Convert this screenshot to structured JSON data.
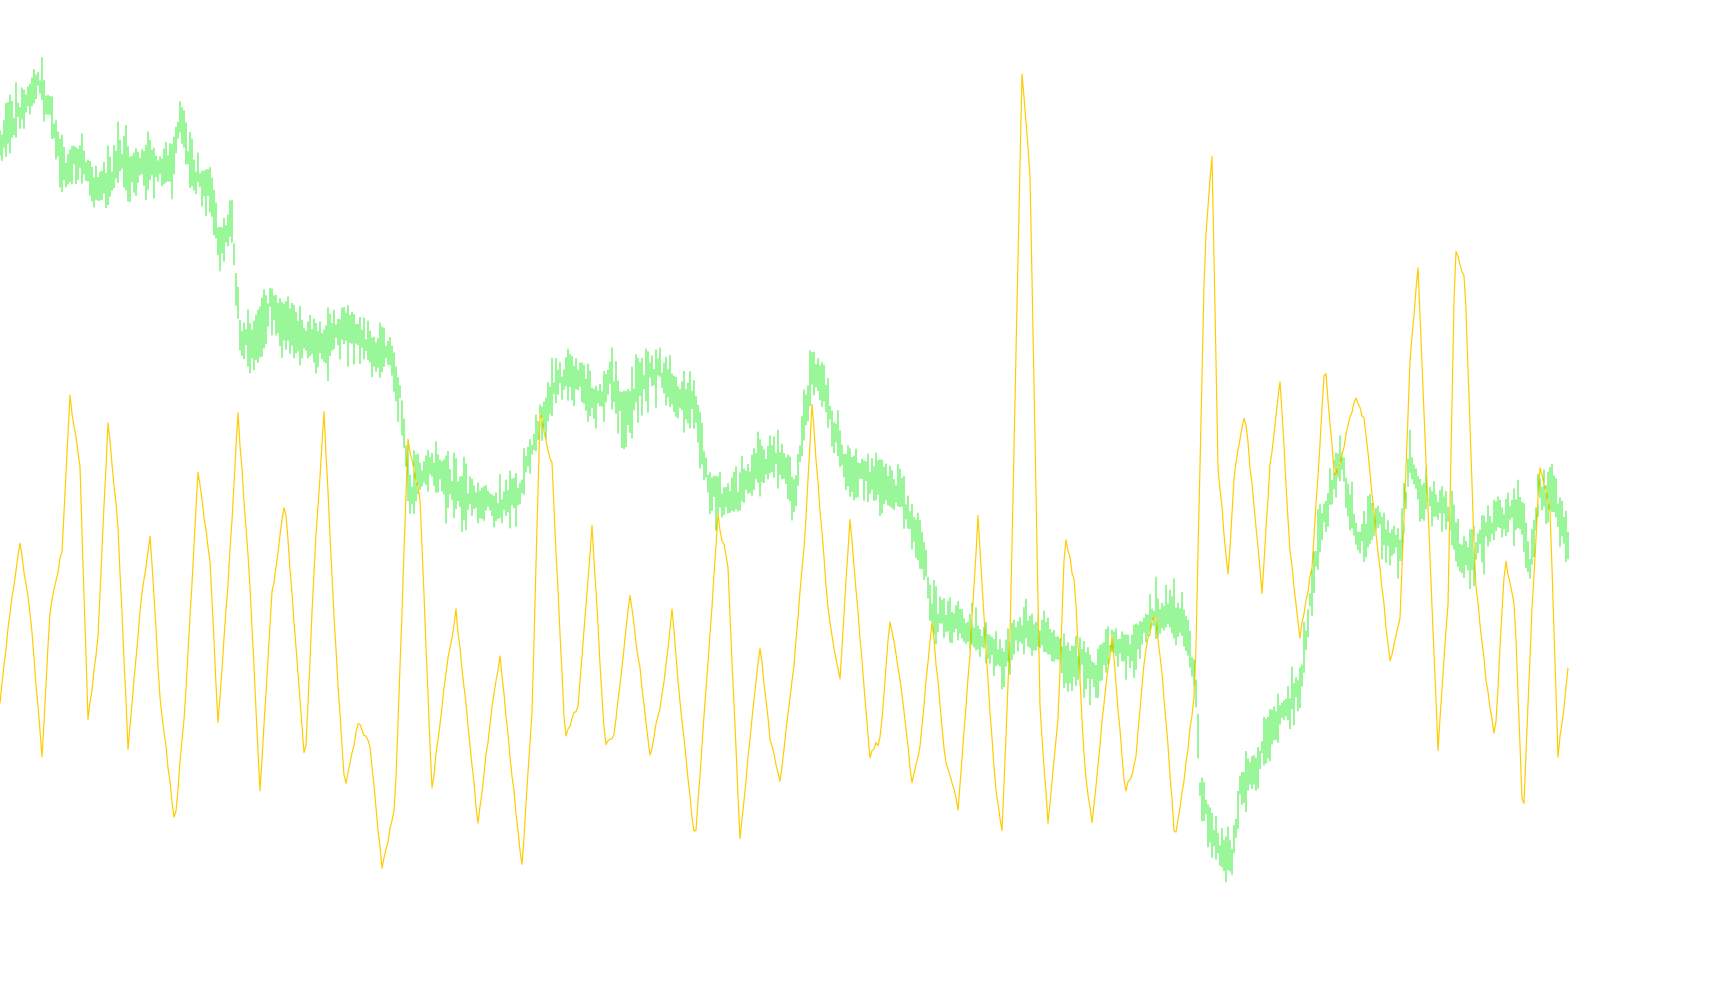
{
  "chart_data": {
    "type": "line",
    "title": "",
    "xlabel": "",
    "ylabel": "",
    "grid": false,
    "legend": "none",
    "xlim": [
      0,
      1568
    ],
    "ylim": [
      0,
      100
    ],
    "series": [
      {
        "id": "price",
        "style": "bars",
        "color": "#33ee33",
        "points": [
          [
            0,
            88
          ],
          [
            20,
            91
          ],
          [
            42,
            95
          ],
          [
            55,
            89
          ],
          [
            65,
            84
          ],
          [
            80,
            86
          ],
          [
            100,
            82
          ],
          [
            120,
            86
          ],
          [
            135,
            84
          ],
          [
            150,
            86
          ],
          [
            170,
            84
          ],
          [
            180,
            90
          ],
          [
            195,
            84
          ],
          [
            210,
            82
          ],
          [
            220,
            76
          ],
          [
            232,
            78
          ],
          [
            240,
            65
          ],
          [
            255,
            64
          ],
          [
            270,
            69
          ],
          [
            285,
            66
          ],
          [
            300,
            65
          ],
          [
            320,
            64
          ],
          [
            345,
            66
          ],
          [
            370,
            64
          ],
          [
            390,
            63
          ],
          [
            400,
            58
          ],
          [
            410,
            47
          ],
          [
            430,
            50
          ],
          [
            445,
            48
          ],
          [
            460,
            47
          ],
          [
            480,
            46
          ],
          [
            500,
            45
          ],
          [
            520,
            47
          ],
          [
            535,
            53
          ],
          [
            550,
            58
          ],
          [
            565,
            61
          ],
          [
            580,
            60
          ],
          [
            595,
            57
          ],
          [
            610,
            60
          ],
          [
            625,
            55
          ],
          [
            640,
            60
          ],
          [
            660,
            61
          ],
          [
            675,
            58
          ],
          [
            695,
            57
          ],
          [
            708,
            48
          ],
          [
            720,
            46
          ],
          [
            740,
            47
          ],
          [
            760,
            50
          ],
          [
            780,
            51
          ],
          [
            795,
            46
          ],
          [
            805,
            57
          ],
          [
            812,
            61
          ],
          [
            820,
            60
          ],
          [
            832,
            55
          ],
          [
            845,
            50
          ],
          [
            860,
            49
          ],
          [
            880,
            48
          ],
          [
            900,
            47
          ],
          [
            915,
            42
          ],
          [
            925,
            39
          ],
          [
            932,
            33
          ],
          [
            950,
            32
          ],
          [
            970,
            31
          ],
          [
            990,
            29
          ],
          [
            1005,
            27
          ],
          [
            1015,
            30
          ],
          [
            1025,
            31
          ],
          [
            1040,
            30
          ],
          [
            1055,
            29
          ],
          [
            1065,
            26
          ],
          [
            1080,
            27
          ],
          [
            1095,
            25
          ],
          [
            1110,
            29
          ],
          [
            1130,
            28
          ],
          [
            1150,
            32
          ],
          [
            1170,
            33
          ],
          [
            1185,
            31
          ],
          [
            1195,
            26
          ],
          [
            1200,
            12
          ],
          [
            1210,
            8
          ],
          [
            1220,
            5
          ],
          [
            1232,
            4
          ],
          [
            1240,
            12
          ],
          [
            1255,
            14
          ],
          [
            1270,
            19
          ],
          [
            1285,
            21
          ],
          [
            1300,
            24
          ],
          [
            1310,
            34
          ],
          [
            1320,
            42
          ],
          [
            1330,
            47
          ],
          [
            1340,
            51
          ],
          [
            1350,
            45
          ],
          [
            1360,
            41
          ],
          [
            1375,
            44
          ],
          [
            1390,
            41
          ],
          [
            1400,
            40
          ],
          [
            1410,
            51
          ],
          [
            1420,
            46
          ],
          [
            1435,
            46
          ],
          [
            1450,
            45
          ],
          [
            1460,
            39
          ],
          [
            1475,
            40
          ],
          [
            1490,
            43
          ],
          [
            1505,
            44
          ],
          [
            1520,
            45
          ],
          [
            1530,
            38
          ],
          [
            1540,
            47
          ],
          [
            1555,
            46
          ],
          [
            1568,
            41
          ]
        ]
      },
      {
        "id": "oscillator",
        "style": "line",
        "color": "#ffcc00",
        "points": [
          [
            0,
            22
          ],
          [
            8,
            31
          ],
          [
            20,
            41
          ],
          [
            30,
            33
          ],
          [
            42,
            16
          ],
          [
            50,
            33
          ],
          [
            62,
            40
          ],
          [
            70,
            58
          ],
          [
            80,
            50
          ],
          [
            88,
            20
          ],
          [
            98,
            30
          ],
          [
            108,
            55
          ],
          [
            118,
            43
          ],
          [
            128,
            17
          ],
          [
            140,
            33
          ],
          [
            150,
            42
          ],
          [
            160,
            23
          ],
          [
            175,
            8
          ],
          [
            185,
            22
          ],
          [
            198,
            49
          ],
          [
            210,
            39
          ],
          [
            218,
            20
          ],
          [
            228,
            36
          ],
          [
            238,
            56
          ],
          [
            250,
            36
          ],
          [
            260,
            12
          ],
          [
            272,
            35
          ],
          [
            285,
            46
          ],
          [
            295,
            30
          ],
          [
            305,
            15
          ],
          [
            315,
            40
          ],
          [
            324,
            56
          ],
          [
            335,
            30
          ],
          [
            345,
            12
          ],
          [
            358,
            20
          ],
          [
            370,
            17
          ],
          [
            382,
            3
          ],
          [
            395,
            10
          ],
          [
            408,
            53
          ],
          [
            420,
            46
          ],
          [
            432,
            12
          ],
          [
            445,
            25
          ],
          [
            456,
            33
          ],
          [
            465,
            23
          ],
          [
            478,
            8
          ],
          [
            490,
            20
          ],
          [
            500,
            28
          ],
          [
            510,
            16
          ],
          [
            522,
            3
          ],
          [
            532,
            21
          ],
          [
            540,
            56
          ],
          [
            552,
            50
          ],
          [
            565,
            18
          ],
          [
            578,
            22
          ],
          [
            592,
            43
          ],
          [
            605,
            17
          ],
          [
            615,
            19
          ],
          [
            630,
            35
          ],
          [
            640,
            26
          ],
          [
            650,
            16
          ],
          [
            662,
            23
          ],
          [
            672,
            33
          ],
          [
            682,
            20
          ],
          [
            695,
            6
          ],
          [
            705,
            22
          ],
          [
            718,
            44
          ],
          [
            728,
            38
          ],
          [
            740,
            6
          ],
          [
            750,
            18
          ],
          [
            760,
            29
          ],
          [
            770,
            18
          ],
          [
            780,
            13
          ],
          [
            795,
            28
          ],
          [
            805,
            42
          ],
          [
            812,
            57
          ],
          [
            828,
            33
          ],
          [
            840,
            25
          ],
          [
            850,
            44
          ],
          [
            860,
            30
          ],
          [
            870,
            16
          ],
          [
            880,
            18
          ],
          [
            890,
            32
          ],
          [
            900,
            25
          ],
          [
            912,
            13
          ],
          [
            920,
            17
          ],
          [
            932,
            32
          ],
          [
            945,
            16
          ],
          [
            958,
            10
          ],
          [
            970,
            28
          ],
          [
            978,
            44
          ],
          [
            985,
            30
          ],
          [
            995,
            13
          ],
          [
            1002,
            7
          ],
          [
            1010,
            30
          ],
          [
            1022,
            96
          ],
          [
            1030,
            84
          ],
          [
            1040,
            22
          ],
          [
            1048,
            8
          ],
          [
            1058,
            20
          ],
          [
            1065,
            42
          ],
          [
            1075,
            36
          ],
          [
            1085,
            14
          ],
          [
            1092,
            8
          ],
          [
            1102,
            20
          ],
          [
            1112,
            30
          ],
          [
            1125,
            12
          ],
          [
            1135,
            15
          ],
          [
            1145,
            28
          ],
          [
            1155,
            33
          ],
          [
            1165,
            22
          ],
          [
            1175,
            6
          ],
          [
            1185,
            14
          ],
          [
            1195,
            24
          ],
          [
            1205,
            76
          ],
          [
            1212,
            86
          ],
          [
            1218,
            50
          ],
          [
            1228,
            37
          ],
          [
            1235,
            50
          ],
          [
            1245,
            56
          ],
          [
            1255,
            44
          ],
          [
            1262,
            35
          ],
          [
            1270,
            50
          ],
          [
            1280,
            60
          ],
          [
            1290,
            40
          ],
          [
            1300,
            30
          ],
          [
            1312,
            38
          ],
          [
            1325,
            62
          ],
          [
            1335,
            48
          ],
          [
            1345,
            53
          ],
          [
            1355,
            58
          ],
          [
            1365,
            55
          ],
          [
            1378,
            40
          ],
          [
            1390,
            27
          ],
          [
            1400,
            32
          ],
          [
            1410,
            62
          ],
          [
            1418,
            73
          ],
          [
            1428,
            45
          ],
          [
            1438,
            17
          ],
          [
            1448,
            34
          ],
          [
            1455,
            75
          ],
          [
            1465,
            72
          ],
          [
            1475,
            37
          ],
          [
            1485,
            26
          ],
          [
            1495,
            18
          ],
          [
            1505,
            39
          ],
          [
            1515,
            33
          ],
          [
            1523,
            8
          ],
          [
            1532,
            33
          ],
          [
            1540,
            50
          ],
          [
            1550,
            45
          ],
          [
            1558,
            16
          ],
          [
            1568,
            26
          ]
        ]
      }
    ]
  }
}
